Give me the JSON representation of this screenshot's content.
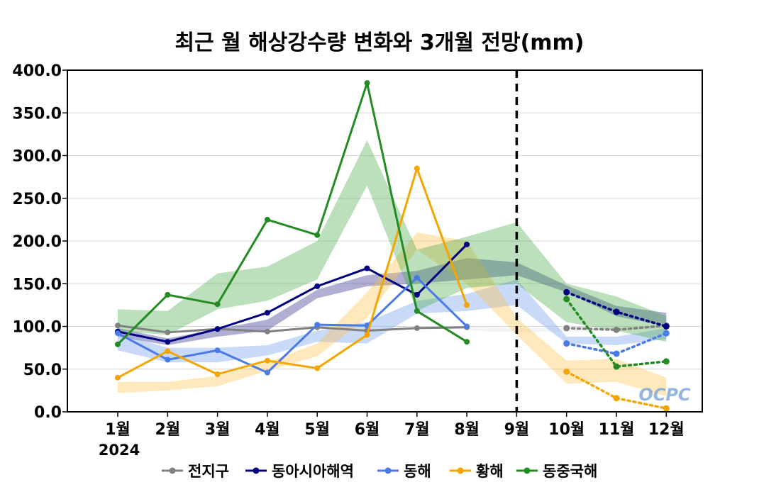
{
  "chart_data": {
    "type": "line",
    "title": "최근 월 해상강수량 변화와 3개월 전망(mm)",
    "year_label": "2024",
    "categories": [
      "1월",
      "2월",
      "3월",
      "4월",
      "5월",
      "6월",
      "7월",
      "8월",
      "9월",
      "10월",
      "11월",
      "12월"
    ],
    "ylim": [
      0,
      400
    ],
    "yticks": [
      "0.0",
      "50.0",
      "100.0",
      "150.0",
      "200.0",
      "250.0",
      "300.0",
      "350.0",
      "400.0"
    ],
    "grid": "horizontal",
    "legend_position": "bottom",
    "forecast_divider_category": "9월",
    "watermark": "OCPC",
    "series": [
      {
        "name": "전지구",
        "color": "#808080",
        "observed": [
          101,
          93,
          97,
          94,
          99,
          95,
          98,
          99
        ],
        "forecast": [
          98,
          96,
          101
        ],
        "band_lower": [
          null,
          null,
          null,
          null,
          null,
          null,
          null,
          95,
          93,
          94,
          95,
          98
        ],
        "band_upper": [
          null,
          null,
          null,
          null,
          null,
          null,
          null,
          100,
          98,
          98,
          98,
          101
        ],
        "band_color": "#e0e0e0"
      },
      {
        "name": "동아시아해역",
        "color": "#000080",
        "observed": [
          94,
          82,
          97,
          116,
          147,
          168,
          137,
          196
        ],
        "forecast": [
          140,
          117,
          100
        ],
        "band_lower": [
          88,
          78,
          88,
          95,
          133,
          147,
          150,
          155,
          160,
          140,
          112,
          100
        ],
        "band_upper": [
          98,
          86,
          97,
          108,
          143,
          160,
          165,
          180,
          175,
          148,
          124,
          116
        ],
        "band_color": "#1a1a80"
      },
      {
        "name": "동해",
        "color": "#4a7ae8",
        "observed": [
          92,
          61,
          72,
          46,
          102,
          101,
          157,
          100
        ],
        "forecast": [
          80,
          68,
          92
        ],
        "band_lower": [
          72,
          58,
          58,
          66,
          82,
          80,
          115,
          118,
          125,
          80,
          78,
          85
        ],
        "band_upper": [
          92,
          75,
          75,
          78,
          95,
          105,
          130,
          138,
          155,
          88,
          88,
          98
        ],
        "band_color": "#6495ed"
      },
      {
        "name": "황해",
        "color": "#f5a500",
        "observed": [
          40,
          71,
          44,
          60,
          51,
          90,
          285,
          125
        ],
        "forecast": [
          47,
          16,
          4
        ],
        "band_lower": [
          22,
          25,
          30,
          48,
          65,
          110,
          190,
          150,
          90,
          33,
          35,
          18
        ],
        "band_upper": [
          35,
          35,
          42,
          58,
          80,
          140,
          210,
          200,
          110,
          60,
          62,
          40
        ],
        "band_color": "#ffbf40"
      },
      {
        "name": "동중국해",
        "color": "#228b22",
        "observed": [
          79,
          137,
          126,
          225,
          207,
          385,
          118,
          82
        ],
        "forecast": [
          132,
          53,
          59
        ],
        "band_lower": [
          95,
          90,
          120,
          130,
          155,
          265,
          118,
          145,
          150,
          105,
          95,
          82
        ],
        "band_upper": [
          120,
          118,
          162,
          170,
          200,
          318,
          190,
          205,
          222,
          150,
          135,
          112
        ],
        "band_color": "#3ea33e"
      }
    ]
  }
}
